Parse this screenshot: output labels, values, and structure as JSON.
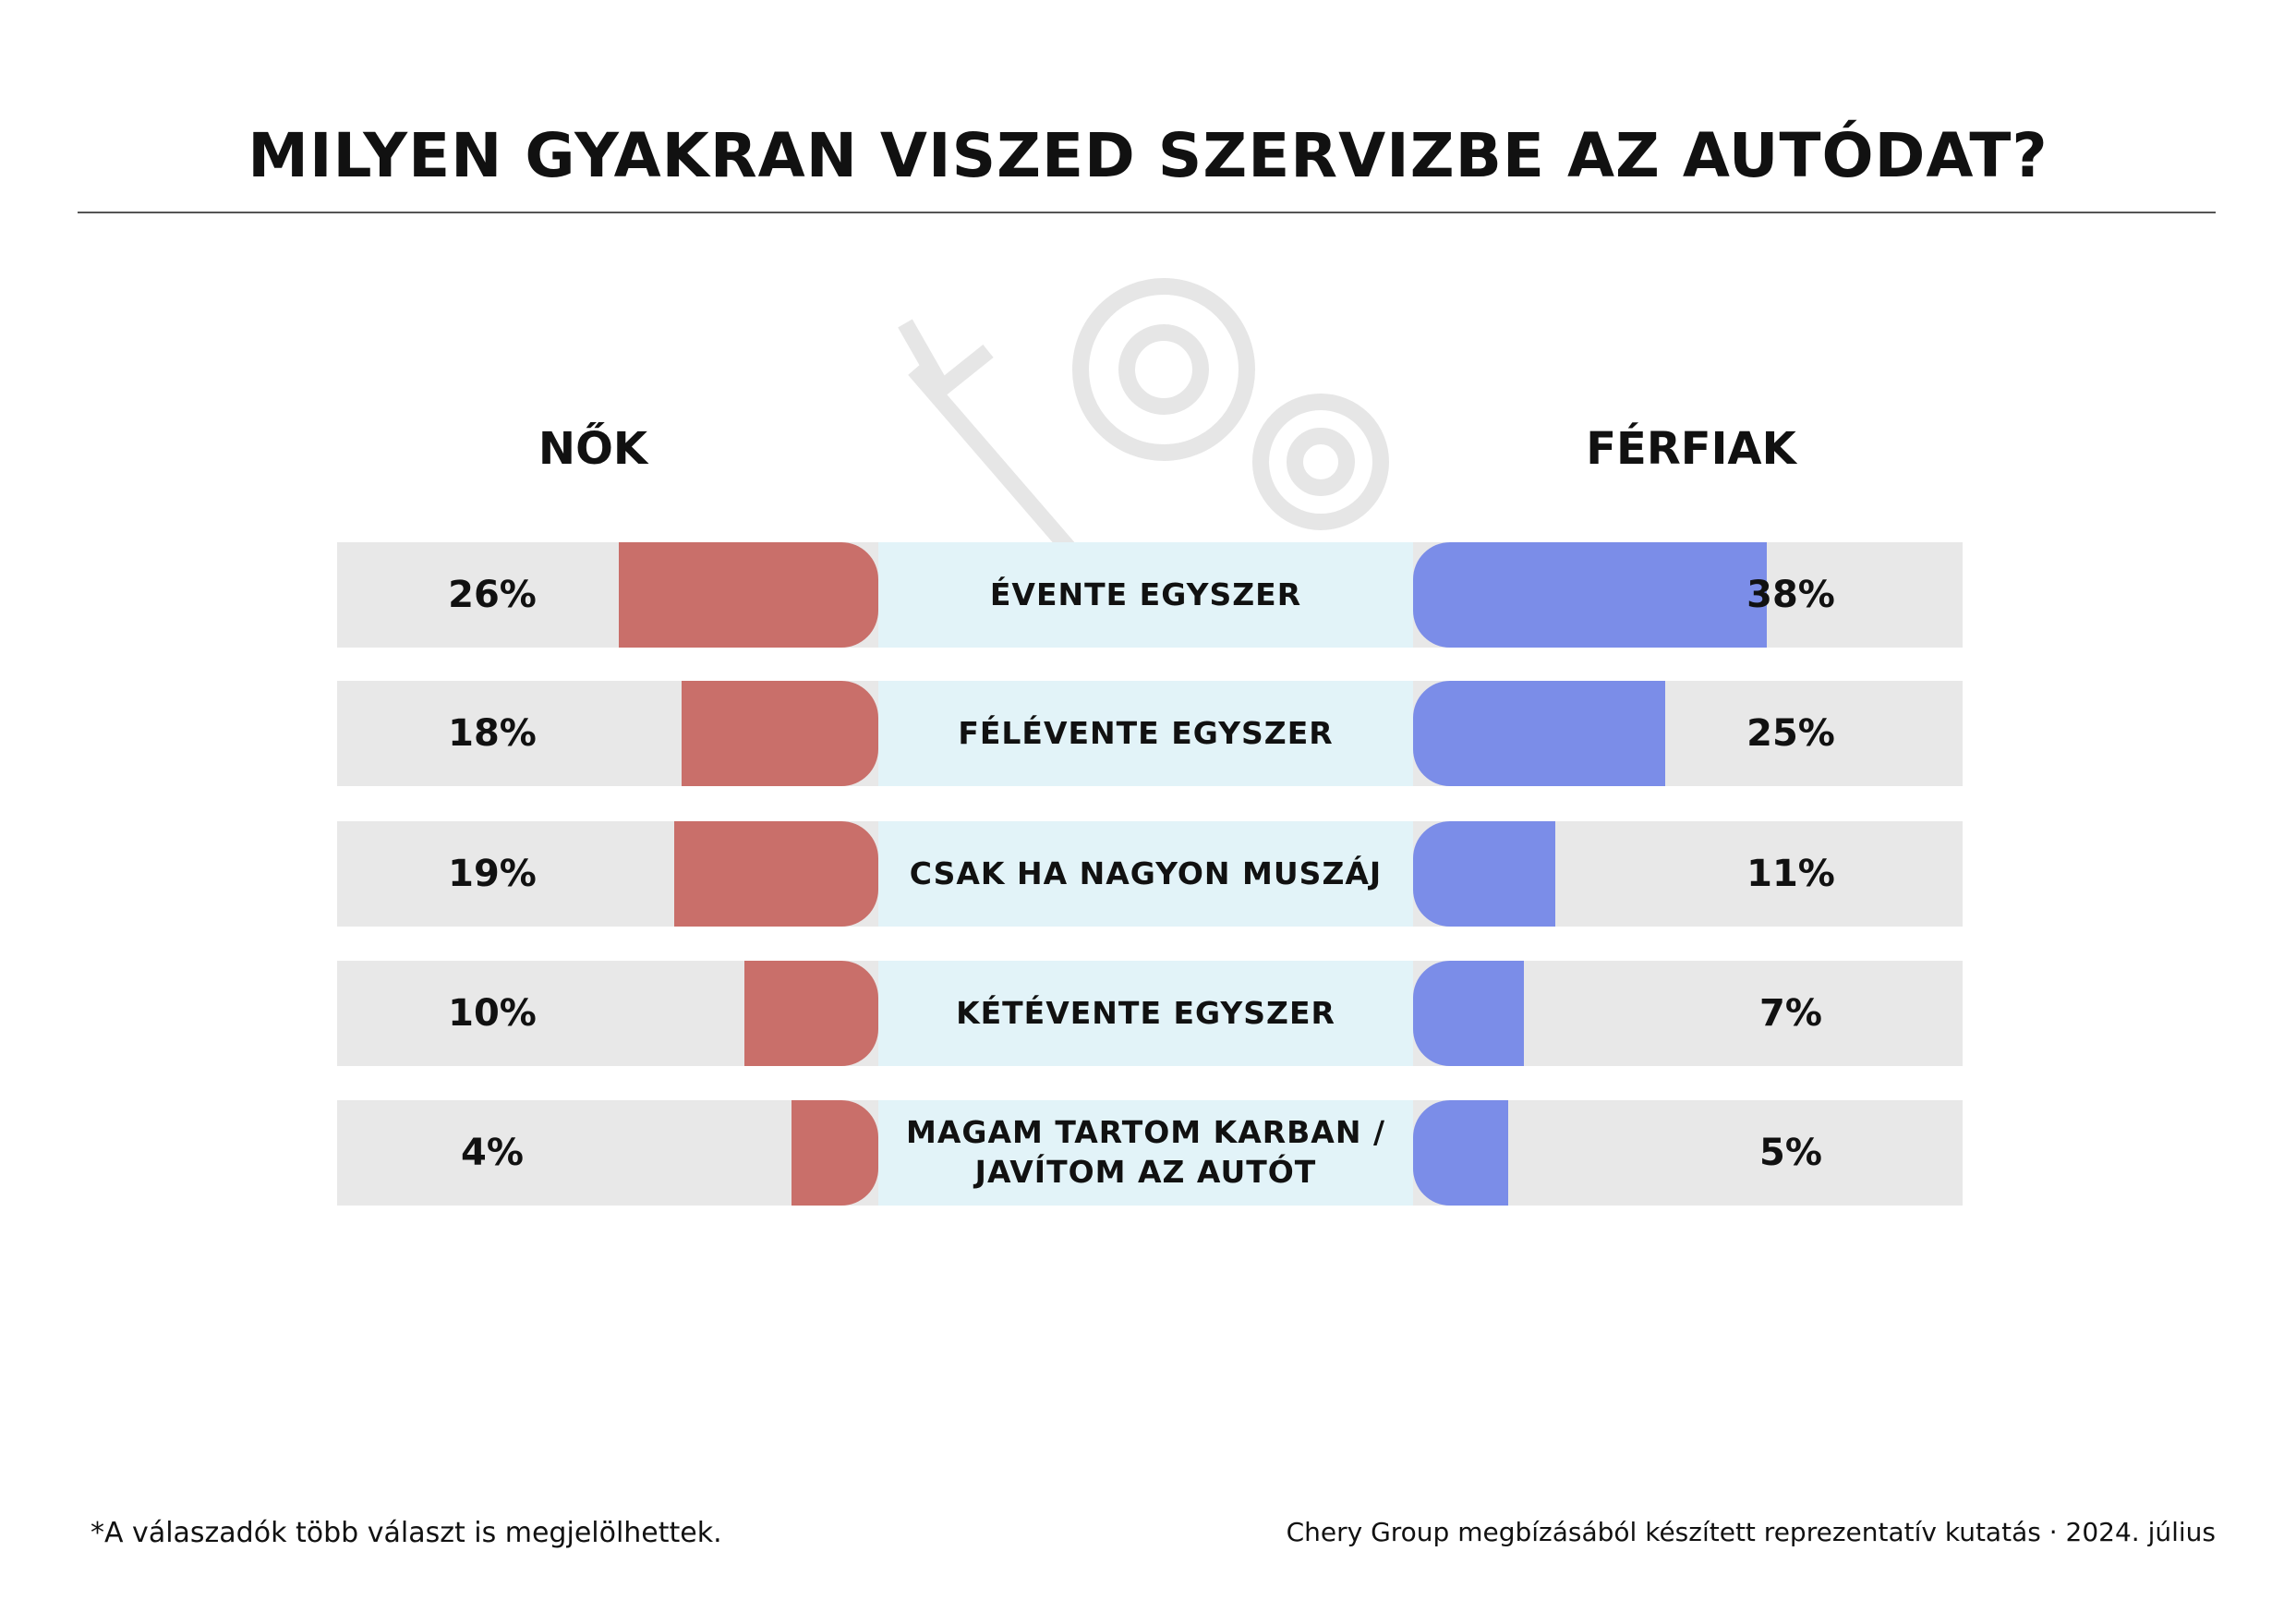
{
  "chart_data": {
    "type": "butterfly",
    "title": "MILYEN GYAKRAN VISZED SZERVIZBE AZ AUTÓDAT?",
    "categories": [
      "ÉVENTE EGYSZER",
      "FÉLÉVENTE EGYSZER",
      "CSAK HA NAGYON MUSZÁJ",
      "KÉTÉVENTE EGYSZER",
      "MAGAM TARTOM KARBAN / JAVÍTOM AZ AUTÓT"
    ],
    "series": [
      {
        "name": "NŐK",
        "color": "#c96f6a",
        "values": [
          26,
          18,
          19,
          10,
          4
        ],
        "value_labels": [
          "26%",
          "18%",
          "19%",
          "10%",
          "4%"
        ]
      },
      {
        "name": "FÉRFIAK",
        "color": "#7b8de8",
        "values": [
          38,
          25,
          11,
          7,
          5
        ],
        "value_labels": [
          "38%",
          "25%",
          "11%",
          "7%",
          "5%"
        ]
      }
    ],
    "footnote": "*A válaszadók több választ is megjelölhettek.",
    "source": "Chery Group megbízásából készített reprezentatív kutatás · 2024. július"
  }
}
